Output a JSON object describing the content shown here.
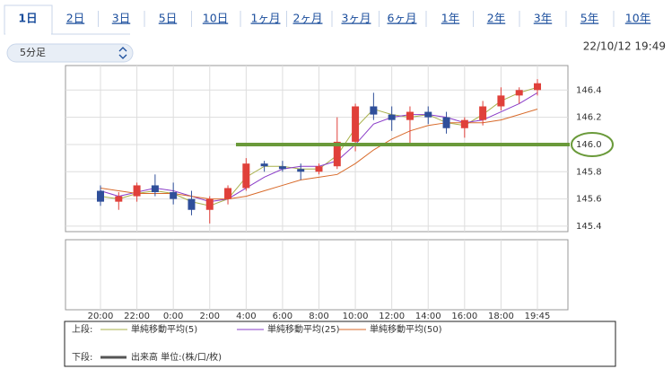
{
  "tabs": [
    "1日",
    "2日",
    "3日",
    "5日",
    "10日",
    "1ヶ月",
    "2ヶ月",
    "3ヶ月",
    "6ヶ月",
    "1年",
    "2年",
    "3年",
    "5年",
    "10年"
  ],
  "interval_select": "5分足",
  "timestamp": "22/10/12 19:49",
  "chart_data": {
    "type": "candlestick",
    "categories": [
      "20:00",
      null,
      "22:00",
      null,
      "0:00",
      null,
      "2:00",
      null,
      "4:00",
      null,
      "6:00",
      null,
      "8:00",
      null,
      "10:00",
      null,
      "12:00",
      null,
      "14:00",
      null,
      "16:00",
      null,
      "18:00",
      null,
      "19:45"
    ],
    "open": [
      145.66,
      145.58,
      145.62,
      145.7,
      145.65,
      145.6,
      145.52,
      145.6,
      145.68,
      145.86,
      145.84,
      145.82,
      145.8,
      145.84,
      146.02,
      146.28,
      146.22,
      146.18,
      146.24,
      146.2,
      146.12,
      146.18,
      146.28,
      146.36,
      146.4
    ],
    "high": [
      145.7,
      145.65,
      145.72,
      145.78,
      145.72,
      145.66,
      145.62,
      145.7,
      145.9,
      145.88,
      145.88,
      145.86,
      145.86,
      146.2,
      146.3,
      146.38,
      146.28,
      146.28,
      146.28,
      146.24,
      146.2,
      146.32,
      146.42,
      146.42,
      146.48
    ],
    "low": [
      145.55,
      145.52,
      145.58,
      145.62,
      145.56,
      145.48,
      145.42,
      145.56,
      145.66,
      145.8,
      145.8,
      145.74,
      145.78,
      145.82,
      145.95,
      146.18,
      146.1,
      146.0,
      146.15,
      146.08,
      146.05,
      146.14,
      146.25,
      146.3,
      146.36
    ],
    "close": [
      145.58,
      145.62,
      145.7,
      145.65,
      145.6,
      145.52,
      145.6,
      145.68,
      145.86,
      145.84,
      145.82,
      145.8,
      145.84,
      146.02,
      146.28,
      146.22,
      146.18,
      146.24,
      146.2,
      146.12,
      146.18,
      146.28,
      146.36,
      146.4,
      146.45
    ],
    "up_color": "#e0403a",
    "down_color": "#2f4f9a",
    "series": [
      {
        "name": "単純移動平均(5)",
        "color": "#a8b04a",
        "values": [
          145.62,
          145.6,
          145.64,
          145.66,
          145.64,
          145.58,
          145.55,
          145.6,
          145.76,
          145.84,
          145.84,
          145.82,
          145.82,
          145.92,
          146.12,
          146.26,
          146.22,
          146.2,
          146.22,
          146.16,
          146.14,
          146.22,
          146.32,
          146.38,
          146.42
        ]
      },
      {
        "name": "単純移動平均(25)",
        "color": "#8a3cc8",
        "values": [
          145.66,
          145.62,
          145.65,
          145.68,
          145.66,
          145.62,
          145.58,
          145.6,
          145.68,
          145.76,
          145.82,
          145.84,
          145.84,
          145.88,
          146.0,
          146.15,
          146.2,
          146.22,
          146.22,
          146.2,
          146.16,
          146.18,
          146.24,
          146.3,
          146.38
        ]
      },
      {
        "name": "単純移動平均(50)",
        "color": "#d86a2a",
        "values": [
          145.68,
          145.66,
          145.64,
          145.64,
          145.64,
          145.62,
          145.6,
          145.6,
          145.62,
          145.66,
          145.7,
          145.74,
          145.76,
          145.78,
          145.86,
          145.96,
          146.04,
          146.1,
          146.14,
          146.16,
          146.16,
          146.16,
          146.18,
          146.22,
          146.26
        ]
      }
    ],
    "ylim": [
      145.36,
      146.58
    ],
    "yticks": [
      145.4,
      145.6,
      145.8,
      {
        "value": 146,
        "label": "146.0"
      },
      146.2,
      146.4
    ],
    "hline": {
      "value": 146,
      "color": "#6a9a3a"
    }
  },
  "legend": {
    "upper_label": "上段:",
    "lower_label": "下段:",
    "volume_label": "出来高 単位:(株/口/枚)"
  }
}
